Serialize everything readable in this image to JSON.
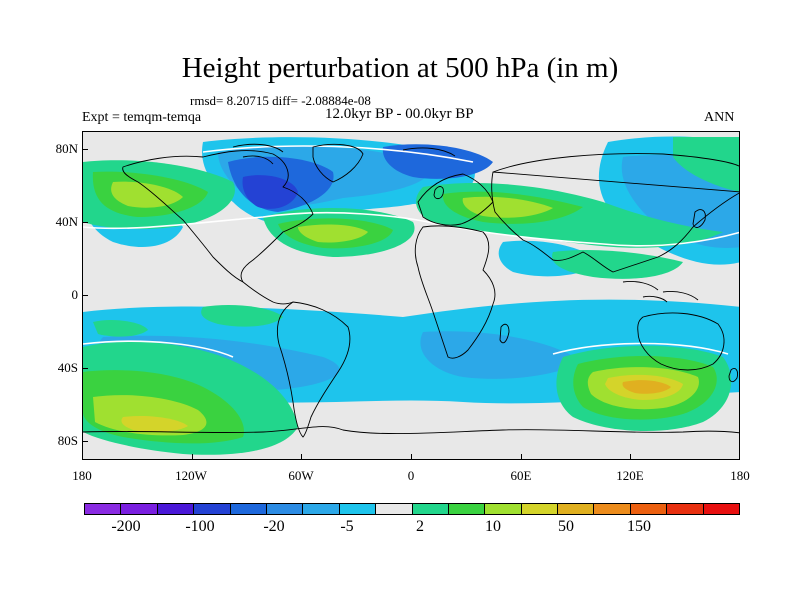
{
  "title": "Height perturbation at 500 hPa (in m)",
  "stats_text": "rmsd= 8.20715 diff= -2.08884e-08",
  "experiment_text": "Expt = temqm-temqa",
  "period_text": "12.0kyr BP - 00.0kyr BP",
  "season_text": "ANN",
  "lat_ticks": [
    "80N",
    "40N",
    "0",
    "40S",
    "80S"
  ],
  "lon_ticks": [
    "180",
    "120W",
    "60W",
    "0",
    "60E",
    "120E",
    "180"
  ],
  "colorbar": {
    "colors": [
      "#8a2be2",
      "#7a1fe0",
      "#4a18d8",
      "#2442d4",
      "#1e68dc",
      "#2c8ce4",
      "#2ca8e8",
      "#1ec4ec",
      "#e8e8e8",
      "#22d68c",
      "#3ad240",
      "#a0e030",
      "#d4d42a",
      "#e0b020",
      "#ec8c1c",
      "#ec6010",
      "#e83010",
      "#e81010"
    ],
    "labels": [
      "-200",
      "-100",
      "-20",
      "-5",
      "2",
      "10",
      "50",
      "150"
    ]
  },
  "field_colors": {
    "neutral": "#e8e8e8",
    "weak_negative": "#1ec4ec",
    "moderate_negative": "#2ca8e8",
    "strong_negative": "#1e68dc",
    "very_strong_negative": "#2442d4",
    "weak_positive": "#22d68c",
    "moderate_positive": "#3ad240",
    "strong_positive": "#a0e030",
    "very_strong_positive": "#d4d42a",
    "peak_positive": "#e0b020",
    "contour_zero": "#ffffff",
    "coastline": "#000000"
  }
}
